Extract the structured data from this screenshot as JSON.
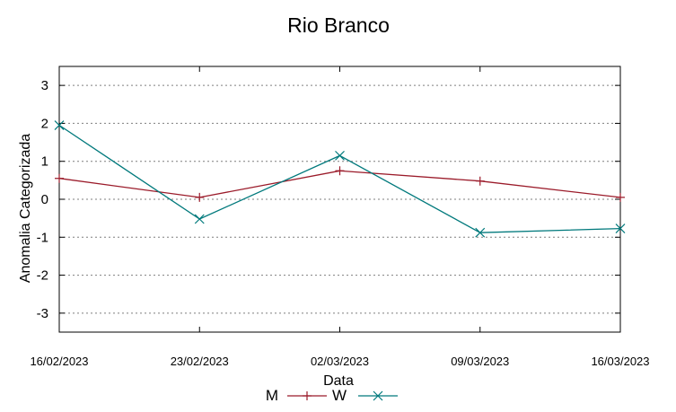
{
  "chart_data": {
    "type": "line",
    "title": "Rio Branco",
    "xlabel": "Data",
    "ylabel": "Anomalia Categorizada",
    "ylim": [
      -3.5,
      3.5
    ],
    "yticks": [
      "3",
      "2",
      "1",
      "0",
      "-1",
      "-2",
      "-3"
    ],
    "ytick_values": [
      3,
      2,
      1,
      0,
      -1,
      -2,
      -3
    ],
    "categories": [
      "16/02/2023",
      "23/02/2023",
      "02/03/2023",
      "09/03/2023",
      "16/03/2023"
    ],
    "grid": true,
    "legend_position": "bottom",
    "series": [
      {
        "name": "M",
        "values": [
          0.55,
          0.05,
          0.75,
          0.48,
          0.05
        ],
        "color": "#9b1b2a",
        "marker": "plus"
      },
      {
        "name": "W",
        "values": [
          1.95,
          -0.52,
          1.15,
          -0.88,
          -0.77
        ],
        "color": "#00797c",
        "marker": "cross"
      }
    ]
  }
}
